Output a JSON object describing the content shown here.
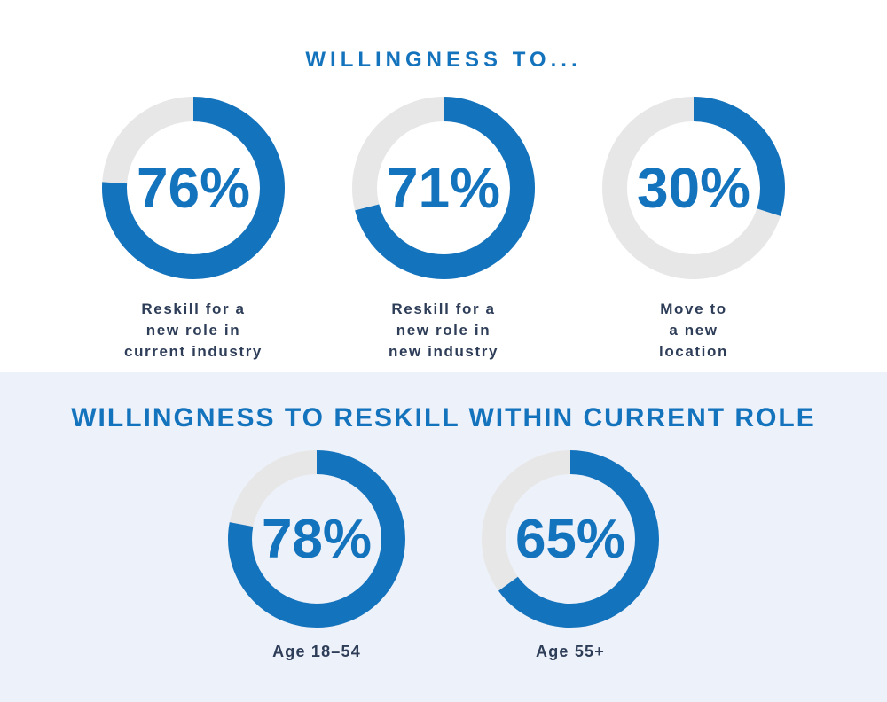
{
  "theme": {
    "accent_blue": "#1473bd",
    "track_gray": "#e7e7e7",
    "label_navy": "#2e3d58",
    "top_bg": "#ffffff",
    "bottom_bg": "#edf1f9"
  },
  "sections": [
    {
      "title": "WILLINGNESS TO...",
      "charts": [
        {
          "value": 76,
          "display": "76%",
          "label_lines": [
            "Reskill for a",
            "new role in",
            "current industry"
          ]
        },
        {
          "value": 71,
          "display": "71%",
          "label_lines": [
            "Reskill for a",
            "new role in",
            "new industry"
          ]
        },
        {
          "value": 30,
          "display": "30%",
          "label_lines": [
            "Move to",
            "a new",
            "location"
          ]
        }
      ]
    },
    {
      "title": "WILLINGNESS TO RESKILL WITHIN CURRENT ROLE",
      "charts": [
        {
          "value": 78,
          "display": "78%",
          "label_lines": [
            "Age 18–54"
          ]
        },
        {
          "value": 65,
          "display": "65%",
          "label_lines": [
            "Age 55+"
          ]
        }
      ]
    }
  ],
  "chart_data": [
    {
      "type": "pie",
      "style": "donut",
      "title": "WILLINGNESS TO...",
      "labels": [
        "Reskill for a new role in current industry",
        "Reskill for a new role in new industry",
        "Move to a new location"
      ],
      "values": [
        76,
        71,
        30
      ],
      "unit": "%",
      "notes": "Each donut is an independent percentage gauge, blue arc starts at 12 o'clock and sweeps clockwise; remainder is light gray"
    },
    {
      "type": "pie",
      "style": "donut",
      "title": "WILLINGNESS TO RESKILL WITHIN CURRENT ROLE",
      "labels": [
        "Age 18–54",
        "Age 55+"
      ],
      "values": [
        78,
        65
      ],
      "unit": "%",
      "notes": "Each donut is an independent percentage gauge, blue arc starts at 12 o'clock and sweeps clockwise; remainder is light gray"
    }
  ]
}
